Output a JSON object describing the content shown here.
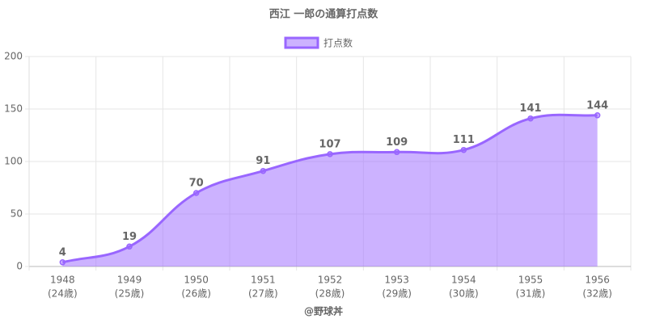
{
  "chart_data": {
    "type": "line",
    "title": "西江 一郎の通算打点数",
    "footer": "@野球丼",
    "categories": [
      [
        "1948",
        "(24歳)"
      ],
      [
        "1949",
        "(25歳)"
      ],
      [
        "1950",
        "(26歳)"
      ],
      [
        "1951",
        "(27歳)"
      ],
      [
        "1952",
        "(28歳)"
      ],
      [
        "1953",
        "(29歳)"
      ],
      [
        "1954",
        "(30歳)"
      ],
      [
        "1955",
        "(31歳)"
      ],
      [
        "1956",
        "(32歳)"
      ]
    ],
    "series": [
      {
        "name": "打点数",
        "color": "#9966ff",
        "fill_color": "rgba(153,102,255,0.5)",
        "values": [
          4,
          19,
          70,
          91,
          107,
          109,
          111,
          141,
          144
        ]
      }
    ],
    "ylim": [
      0,
      200
    ],
    "yticks": [
      0,
      50,
      100,
      150,
      200
    ],
    "grid": true,
    "legend": "top",
    "data_labels": true
  }
}
